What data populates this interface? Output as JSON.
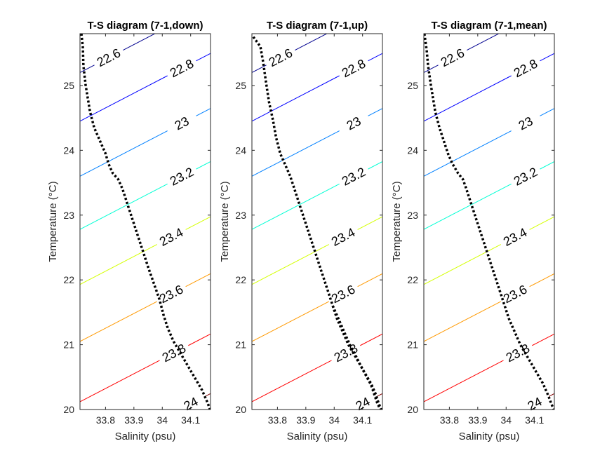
{
  "chart_data": [
    {
      "type": "line",
      "title": "T-S diagram (7-1,down)",
      "xlabel": "Salinity (psu)",
      "ylabel": "Temperature (°C)",
      "xlim": [
        33.71,
        34.17
      ],
      "ylim": [
        20,
        25.8
      ],
      "xticks": [
        "33.8",
        "33.9",
        "34",
        "34.1"
      ],
      "yticks": [
        "20",
        "21",
        "22",
        "23",
        "24",
        "25"
      ],
      "contour_levels": [
        "22.6",
        "22.8",
        "23",
        "23.2",
        "23.4",
        "23.6",
        "23.8",
        "24"
      ],
      "contour_colors": [
        "#00008f",
        "#0000ff",
        "#0080ff",
        "#00ffd4",
        "#d4ff00",
        "#ff9900",
        "#ff0000",
        "#800000"
      ],
      "series": [
        {
          "style": "dotted",
          "color": "#000000",
          "x": [
            33.715,
            33.72,
            33.722,
            33.73,
            33.745,
            33.76,
            33.775,
            33.79,
            33.8,
            33.81,
            33.825,
            33.845,
            33.86,
            33.875,
            33.89,
            33.905,
            33.92,
            33.935,
            33.95,
            33.97,
            33.99,
            34.005,
            34.02,
            34.04,
            34.06,
            34.08,
            34.1,
            34.12,
            34.14,
            34.16,
            34.168
          ],
          "y": [
            25.8,
            25.6,
            25.3,
            25.0,
            24.6,
            24.35,
            24.2,
            24.05,
            23.95,
            23.8,
            23.65,
            23.55,
            23.4,
            23.2,
            23.0,
            22.8,
            22.6,
            22.4,
            22.2,
            21.95,
            21.7,
            21.45,
            21.25,
            21.05,
            20.9,
            20.75,
            20.6,
            20.45,
            20.3,
            20.1,
            20.0
          ]
        }
      ]
    },
    {
      "type": "line",
      "title": "T-S diagram (7-1,up)",
      "xlabel": "Salinity (psu)",
      "ylabel": "Temperature (°C)",
      "xlim": [
        33.71,
        34.17
      ],
      "ylim": [
        20,
        25.8
      ],
      "xticks": [
        "33.8",
        "33.9",
        "34",
        "34.1"
      ],
      "yticks": [
        "20",
        "21",
        "22",
        "23",
        "24",
        "25"
      ],
      "contour_levels": [
        "22.6",
        "22.8",
        "23",
        "23.2",
        "23.4",
        "23.6",
        "23.8",
        "24"
      ],
      "contour_colors": [
        "#00008f",
        "#0000ff",
        "#0080ff",
        "#00ffd4",
        "#d4ff00",
        "#ff9900",
        "#ff0000",
        "#800000"
      ],
      "series": [
        {
          "style": "dotted",
          "color": "#000000",
          "x": [
            33.715,
            33.74,
            33.75,
            33.758,
            33.77,
            33.785,
            33.795,
            33.81,
            33.83,
            33.845,
            33.86,
            33.875,
            33.89,
            33.905,
            33.92,
            33.935,
            33.95,
            33.965,
            33.98,
            33.995,
            34.01,
            34.03,
            34.05,
            34.07,
            34.09,
            34.11,
            34.13,
            34.145,
            34.155,
            34.165
          ],
          "y": [
            25.75,
            25.6,
            25.35,
            25.1,
            24.75,
            24.45,
            24.2,
            23.95,
            23.75,
            23.6,
            23.4,
            23.2,
            23.0,
            22.8,
            22.6,
            22.4,
            22.2,
            22.0,
            21.8,
            21.6,
            21.4,
            21.2,
            21.0,
            20.85,
            20.7,
            20.55,
            20.4,
            20.25,
            20.12,
            20.0
          ]
        },
        {
          "style": "dotted",
          "color": "#000000",
          "x": [
            33.995,
            34.01,
            34.025,
            34.04,
            34.055,
            34.07,
            34.085,
            34.1,
            34.115,
            34.13,
            34.14,
            34.15,
            34.16
          ],
          "y": [
            21.6,
            21.45,
            21.3,
            21.15,
            21.0,
            20.88,
            20.75,
            20.62,
            20.5,
            20.38,
            20.25,
            20.12,
            20.02
          ]
        }
      ]
    },
    {
      "type": "line",
      "title": "T-S diagram (7-1,mean)",
      "xlabel": "Salinity (psu)",
      "ylabel": "Temperature (°C)",
      "xlim": [
        33.71,
        34.17
      ],
      "ylim": [
        20,
        25.8
      ],
      "xticks": [
        "33.8",
        "33.9",
        "34",
        "34.1"
      ],
      "yticks": [
        "20",
        "21",
        "22",
        "23",
        "24",
        "25"
      ],
      "contour_levels": [
        "22.6",
        "22.8",
        "23",
        "23.2",
        "23.4",
        "23.6",
        "23.8",
        "24"
      ],
      "contour_colors": [
        "#00008f",
        "#0000ff",
        "#0080ff",
        "#00ffd4",
        "#d4ff00",
        "#ff9900",
        "#ff0000",
        "#800000"
      ],
      "series": [
        {
          "style": "dotted",
          "color": "#000000",
          "x": [
            33.712,
            33.72,
            33.725,
            33.735,
            33.75,
            33.765,
            33.78,
            33.795,
            33.81,
            33.83,
            33.848,
            33.86,
            33.875,
            33.89,
            33.905,
            33.92,
            33.935,
            33.95,
            33.965,
            33.98,
            33.995,
            34.01,
            34.03,
            34.05,
            34.07,
            34.09,
            34.11,
            34.13,
            34.15,
            34.16,
            34.168
          ],
          "y": [
            25.8,
            25.55,
            25.3,
            25.0,
            24.6,
            24.35,
            24.15,
            23.95,
            23.8,
            23.65,
            23.55,
            23.4,
            23.2,
            23.0,
            22.8,
            22.6,
            22.4,
            22.2,
            22.0,
            21.8,
            21.6,
            21.4,
            21.2,
            21.0,
            20.85,
            20.7,
            20.55,
            20.4,
            20.2,
            20.08,
            20.0
          ]
        }
      ]
    }
  ]
}
